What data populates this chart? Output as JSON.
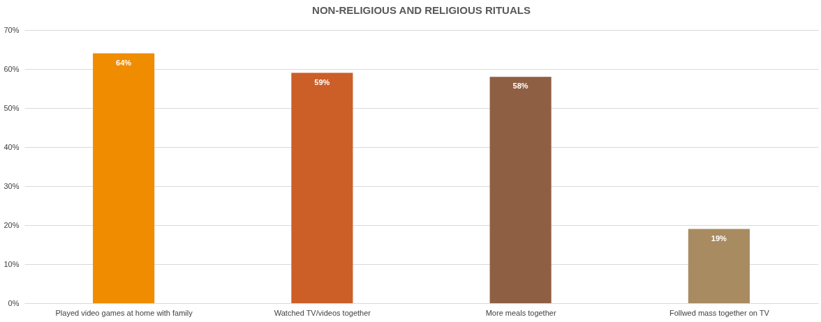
{
  "chart_data": {
    "type": "bar",
    "title": "NON-RELIGIOUS AND RELIGIOUS RITUALS",
    "categories": [
      "Played video games at home with family",
      "Watched TV/videos together",
      "More meals together",
      "Follwed mass together on TV"
    ],
    "values": [
      64,
      59,
      58,
      19
    ],
    "colors": [
      "#f08c00",
      "#cc5e28",
      "#8f5f43",
      "#a88b60"
    ],
    "value_labels": [
      "64%",
      "59%",
      "58%",
      "19%"
    ],
    "ylim": [
      0,
      70
    ],
    "yticks": [
      {
        "value": 0,
        "label": "0%"
      },
      {
        "value": 10,
        "label": "10%"
      },
      {
        "value": 20,
        "label": "20%"
      },
      {
        "value": 30,
        "label": "30%"
      },
      {
        "value": 40,
        "label": "40%"
      },
      {
        "value": 50,
        "label": "50%"
      },
      {
        "value": 60,
        "label": "60%"
      },
      {
        "value": 70,
        "label": "70%"
      }
    ],
    "grid": "y"
  }
}
